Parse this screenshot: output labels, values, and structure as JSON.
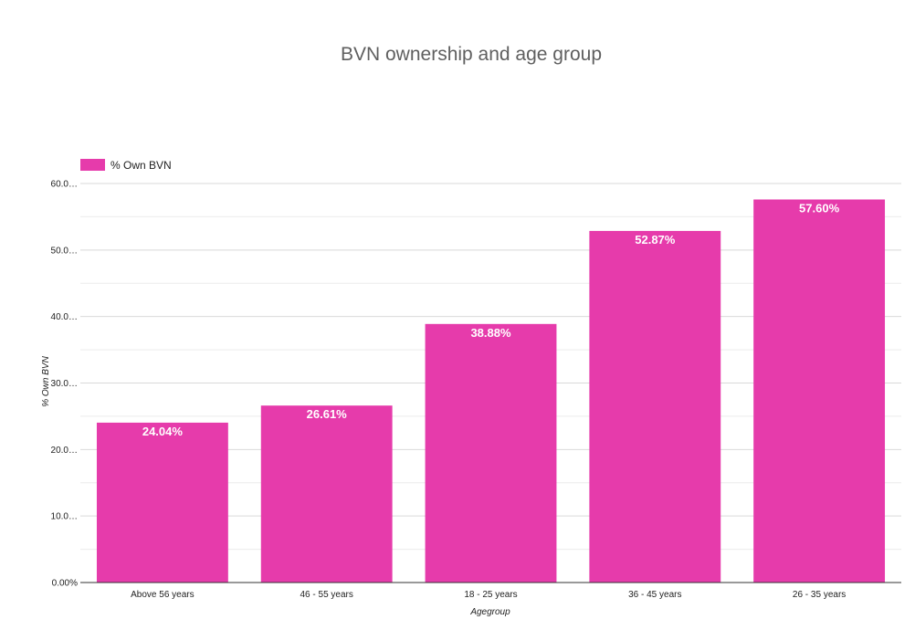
{
  "chart_data": {
    "type": "bar",
    "title": "BVN ownership and age group",
    "xlabel": "Agegroup",
    "ylabel": "% Own BVN",
    "categories": [
      "Above 56 years",
      "46 - 55 years",
      "18 - 25 years",
      "36 - 45 years",
      "26 - 35 years"
    ],
    "series": [
      {
        "name": "% Own BVN",
        "values": [
          24.04,
          26.61,
          38.88,
          52.87,
          57.6
        ],
        "data_labels": [
          "24.04%",
          "26.61%",
          "38.88%",
          "52.87%",
          "57.60%"
        ],
        "color": "#e63bab"
      }
    ],
    "yticks": [
      0,
      10,
      20,
      30,
      40,
      50,
      60
    ],
    "ytick_labels": [
      "0.00%",
      "10.0…",
      "20.0…",
      "30.0…",
      "40.0…",
      "50.0…",
      "60.0…"
    ],
    "ylim": [
      0,
      60
    ],
    "minor_gridlines": true,
    "legend_position": "top-left",
    "colors": {
      "bar": "#e63bab",
      "gridline": "#d9d9d9",
      "minor_gridline": "#ececec",
      "axis": "#333333",
      "title": "#5f5f5f"
    }
  }
}
